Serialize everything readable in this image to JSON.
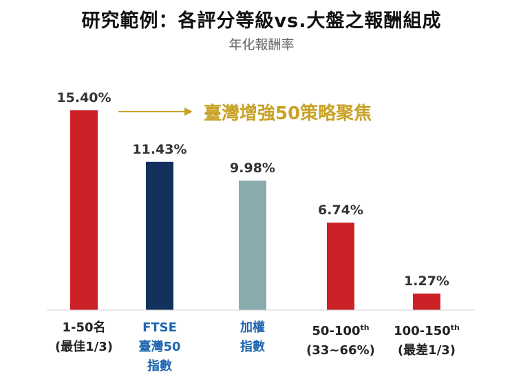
{
  "header": {
    "title": "研究範例：各評分等級vs.大盤之報酬組成",
    "subtitle": "年化報酬率"
  },
  "callout": {
    "text": "臺灣增強50策略聚焦",
    "color": "#C9A227"
  },
  "chart_data": {
    "type": "bar",
    "title": "研究範例：各評分等級vs.大盤之報酬組成",
    "subtitle": "年化報酬率",
    "ylabel": "",
    "ylim": [
      0,
      17
    ],
    "grid": false,
    "legend": "none",
    "categories": [
      {
        "lines": [
          "1-50名",
          "(最佳1/3)"
        ],
        "sup": [
          "",
          ""
        ],
        "label_color": "#222222"
      },
      {
        "lines": [
          "FTSE",
          "臺灣50",
          "指數"
        ],
        "sup": [
          "",
          "",
          ""
        ],
        "label_color": "#1F66B0"
      },
      {
        "lines": [
          "加權",
          "指數"
        ],
        "sup": [
          "",
          ""
        ],
        "label_color": "#1F66B0"
      },
      {
        "lines": [
          "50-100",
          "(33~66%)"
        ],
        "sup": [
          "th",
          ""
        ],
        "label_color": "#222222"
      },
      {
        "lines": [
          "100-150",
          "(最差1/3)"
        ],
        "sup": [
          "th",
          ""
        ],
        "label_color": "#222222"
      }
    ],
    "values": [
      15.4,
      11.43,
      9.98,
      6.74,
      1.27
    ],
    "value_labels": [
      "15.40%",
      "11.43%",
      "9.98%",
      "6.74%",
      "1.27%"
    ],
    "colors": [
      "#CC2027",
      "#10325C",
      "#88ABAE",
      "#CC2027",
      "#CC2027"
    ]
  }
}
